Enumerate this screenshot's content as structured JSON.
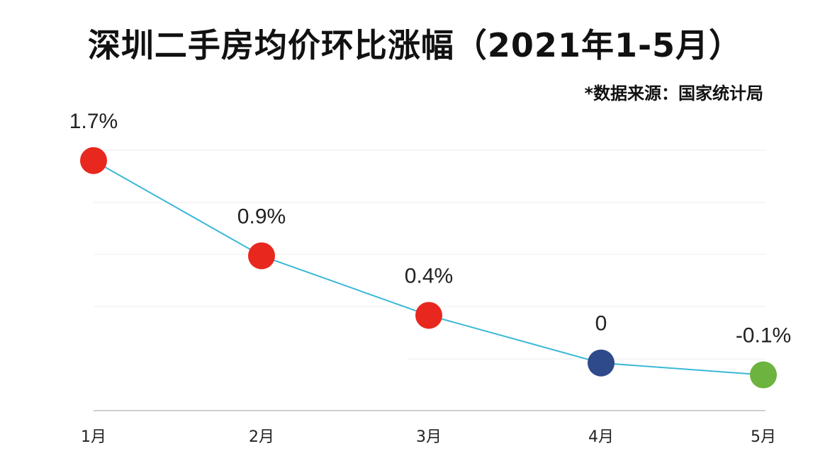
{
  "chart_data": {
    "type": "line",
    "title": "深圳二手房均价环比涨幅（2021年1-5月）",
    "source": "*数据来源：国家统计局",
    "categories": [
      "1月",
      "2月",
      "3月",
      "4月",
      "5月"
    ],
    "values": [
      1.7,
      0.9,
      0.4,
      0,
      -0.1
    ],
    "data_labels": [
      "1.7%",
      "0.9%",
      "0.4%",
      "0",
      "-0.1%"
    ],
    "unit": "%",
    "ylim": [
      -0.4,
      1.8
    ],
    "grid": true,
    "legend": "none"
  },
  "colors": {
    "line": "#3bb8d6",
    "point_colors": [
      "#e8281e",
      "#e8281e",
      "#e8281e",
      "#2e4a8a",
      "#6cb33f"
    ],
    "grid": "#ececec",
    "axis": "#cfcfcf"
  }
}
